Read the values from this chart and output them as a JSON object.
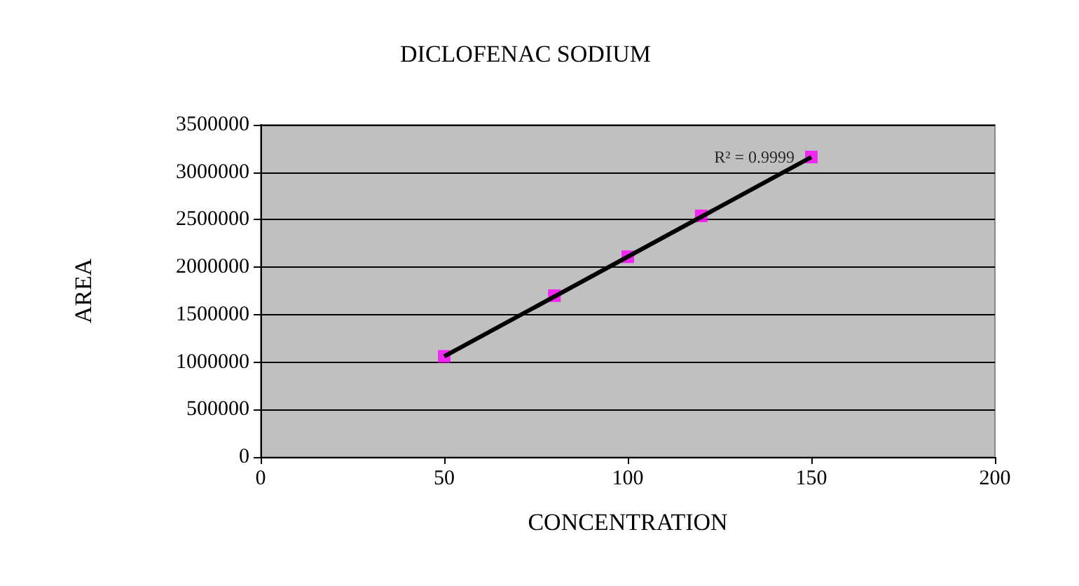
{
  "chart_data": {
    "type": "scatter",
    "title": "DICLOFENAC SODIUM",
    "xlabel": "CONCENTRATION",
    "ylabel": "AREA",
    "series": [
      {
        "color": "#ff00ff",
        "marker": "square",
        "x": [
          50,
          80,
          100,
          120,
          150
        ],
        "values": [
          1060000,
          1700000,
          2110000,
          2540000,
          3160000
        ]
      },
      {
        "type": "line",
        "color": "#000000",
        "marker": "none",
        "line_style": "solid",
        "x": [
          50,
          150
        ],
        "values": [
          1060000,
          3160000
        ]
      }
    ],
    "annotations": [
      {
        "text": "R² = 0.9999",
        "x": 150,
        "y": 3160000
      }
    ],
    "xlim": [
      0,
      200
    ],
    "xticks": [
      0,
      50,
      100,
      150,
      200
    ],
    "ylim": [
      0,
      3500000
    ],
    "yticks": [
      0,
      500000,
      1000000,
      1500000,
      2000000,
      2500000,
      3000000,
      3500000
    ],
    "grid": "y"
  }
}
